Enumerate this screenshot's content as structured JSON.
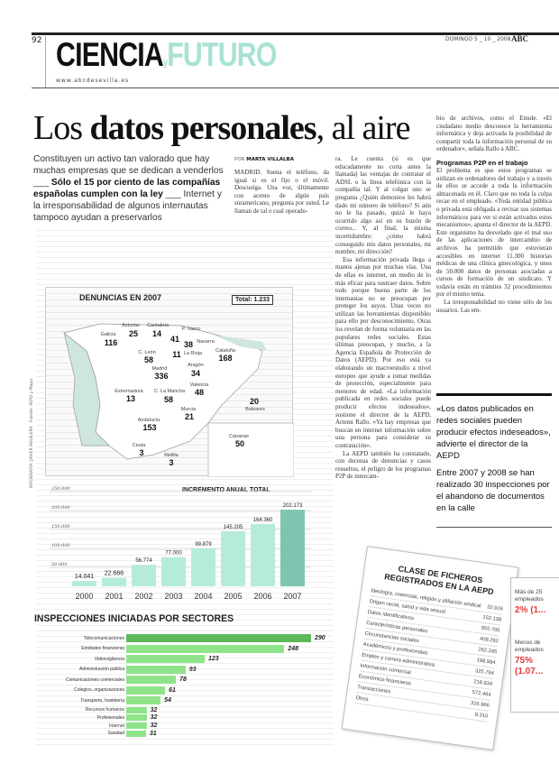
{
  "header": {
    "page_number": "92",
    "date": "DOMINGO 5 _ 10 _ 2008",
    "logo": "ABC",
    "section_a": "CIENCIA",
    "section_y": "y",
    "section_b": "FUTURO",
    "url": "www.abcdesevilla.es"
  },
  "article": {
    "headline_pre": "Los ",
    "headline_bold": "datos personales",
    "headline_post": ", al aire",
    "lead_a": "Constituyen un activo tan valorado que hay muchas empresas que se dedican a venderlos ___ ",
    "lead_b": "Sólo el 15 por ciento de las compañías españolas cumplen con la ley",
    "lead_c": " ___ Internet y la irresponsabilidad de algunos internautas tampoco ayudan a preservarlos",
    "byline_pre": "POR ",
    "byline": "MARTA VILLALBA",
    "col2": "MADRID. Suena el teléfono, da igual si es el fijo o el móvil. Descuelga. Una voz, últimamente con acento de algún país suramericano, pregunta por usted. Le llaman de tal o cual operado-",
    "col3_p1": "ra. Le cuenta (si es que educadamente no corta antes la llamada) las ventajas de contratar el ADSL o la línea telefónica con la compañía tal. Y al colgar uno se pregunta ¿Quién demonios les habrá dado mi número de teléfono? Si aún no le ha pasado, quizá le haya ocurrido algo así en su buzón de correo... Y, al final, la misma incertidumbre: ¿cómo habrá conseguido mis datos personales, mi nombre, mi dirección?",
    "col3_p2": "Esa información privada llega a manos ajenas por muchas vías. Una de ellas es internet, un medio de lo más eficaz para sustraer datos. Sobre todo porque buena parte de los internautas no se preocupan por proteger los suyos. Unas veces no utilizan las herramientas disponibles para ello por desconocimiento. Otras los revelan de forma voluntaria en las populares redes sociales. Estas últimas preocupan, y mucho, a la Agencia Española de Protección de Datos (AEPD). Por eso está ya elaborando un macroestudio a nivel europeo que ayude a tomar medidas de protección, especialmente para menores de edad. «La información publicada en redes sociales puede producir efectos indeseados», sostiene el director de la AEPD, Artemi Rallo. «Ya hay empresas que buscan en internet información sobre una persona para considerar su contratación».",
    "col3_p3": "La AEPD también ha constatado, con decenas de denuncias y casos resueltos, el peligro de los programas P2P de intercam-",
    "col4_p1": "bio de archivos, como el Emule. «El ciudadano medio desconoce la herramienta informática y deja activada la posibilidad de compartir toda la información personal de su ordenador», señala Rallo a ABC.",
    "col4_subhead": "Programas P2P en el trabajo",
    "col4_p2": "El problema es que estos programas se utilizan en ordenadores del trabajo y a través de ellos se accede a toda la información almacenada en él. Claro que no toda la culpa recae en el empleado. «Toda entidad pública o privada está obligada a revisar sus sistemas informáticos para ver si están activados estos mecanismos», apunta el director de la AEPD. Este organismo ha desvelado que el mal uso de las aplicaciones de intercambio de archivos ha permitido que estuvieran accesibles en internet 11.300 historias médicas de una clínica ginecológica, y unos de 50.000 datos de personas asociadas a cursos de formación de un sindicato. Y todavía están en trámites 32 procedimientos por el mismo tema.",
    "col4_p3": "La irresponsabilidad no viene sólo de los usuarios. Las em-",
    "quote1": "«Los datos publicados en redes sociales pueden producir efectos indeseados», advierte el director de la AEPD",
    "quote2": "Entre 2007 y 2008 se han realizado 30 inspecciones por el abandono de documentos en la calle"
  },
  "infographic": {
    "credit_a": "INFOGRAFÍA: JAVIER AGUILERA",
    "credit_b": "Fuente: AEPD y Mapa",
    "map": {
      "title": "DENUNCIAS EN 2007",
      "total": "Total: 1.233",
      "regions": [
        {
          "name": "Asturias",
          "value": "25"
        },
        {
          "name": "Cantabria",
          "value": "14"
        },
        {
          "name": "P. Vasco",
          "value": "41"
        },
        {
          "name": "Navarra",
          "value": "38"
        },
        {
          "name": "Galicia",
          "value": "116"
        },
        {
          "name": "C. León",
          "value": "58"
        },
        {
          "name": "La Rioja",
          "value": "11"
        },
        {
          "name": "Cataluña",
          "value": "168"
        },
        {
          "name": "Madrid",
          "value": "336"
        },
        {
          "name": "Aragón",
          "value": "34"
        },
        {
          "name": "Extremadura",
          "value": "13"
        },
        {
          "name": "C. La Mancha",
          "value": "58"
        },
        {
          "name": "Valencia",
          "value": "48"
        },
        {
          "name": "Baleares",
          "value": "20"
        },
        {
          "name": "Murcia",
          "value": "21"
        },
        {
          "name": "Andalucía",
          "value": "153"
        },
        {
          "name": "Canarias",
          "value": "50"
        },
        {
          "name": "Ceuta",
          "value": "3"
        },
        {
          "name": "Melilla",
          "value": "3"
        }
      ]
    },
    "colors": {
      "bar": "#b5ecd9",
      "bar_last": "#7fc4b0",
      "sector_bar": "#8fe48a",
      "sector_top": "#5db858",
      "accent_red": "#e23a3a",
      "futuro": "#a8e2d4"
    }
  },
  "chart_data": [
    {
      "type": "bar",
      "title": "INCREMENTO ANUAL TOTAL",
      "categories": [
        "2000",
        "2001",
        "2002",
        "2003",
        "2004",
        "2005",
        "2006",
        "2007"
      ],
      "values": [
        14041,
        22666,
        56774,
        77000,
        99879,
        145205,
        164360,
        202173
      ],
      "value_labels": [
        "14.041",
        "22.666",
        "56.774",
        "77.000",
        "99.879",
        "145.205",
        "164.360",
        "202.173"
      ],
      "yticks": [
        "50.000",
        "100.000",
        "150.000",
        "200.000",
        "250.000"
      ],
      "ylim": [
        0,
        250000
      ],
      "grid": true
    },
    {
      "type": "bar",
      "orientation": "horizontal",
      "title": "INSPECCIONES INICIADAS POR SECTORES",
      "categories": [
        "Telecomunicaciones",
        "Entidades financieras",
        "Videovigilancia",
        "Administración pública",
        "Comunicaciones comerciales",
        "Colegios, organizaciones",
        "Transporte, hostelería",
        "Recursos humanos",
        "Profesionales",
        "Internet",
        "Sanidad"
      ],
      "values": [
        290,
        248,
        123,
        93,
        78,
        61,
        54,
        32,
        32,
        32,
        31
      ]
    },
    {
      "type": "table",
      "title": "CLASE DE FICHEROS REGISTRADOS EN LA AEPD",
      "rows": [
        [
          "Ideología, creencias, religión y afiliación sindical",
          "32.916"
        ],
        [
          "Origen racial, salud y vida sexual",
          "152.138"
        ],
        [
          "Datos identificativos",
          "955.705"
        ],
        [
          "Características personales",
          "408.292"
        ],
        [
          "Circunstancias sociales",
          "262.245"
        ],
        [
          "Académicos y profesionales",
          "198.984"
        ],
        [
          "Empleo y carrera administrativa",
          "325.794"
        ],
        [
          "Información comercial",
          "216.934"
        ],
        [
          "Económico-financieros",
          "572.464"
        ],
        [
          "Transacciones",
          "316.966"
        ],
        [
          "Otros",
          "9.310"
        ]
      ]
    }
  ],
  "side_card": {
    "line1": "Más de 25",
    "line2": "empleados",
    "pct1": "2% (1...",
    "line3": "Menos de",
    "line4": "empleados",
    "pct2": "75%",
    "pct2b": "(1.07..."
  },
  "watermark": "ABC"
}
